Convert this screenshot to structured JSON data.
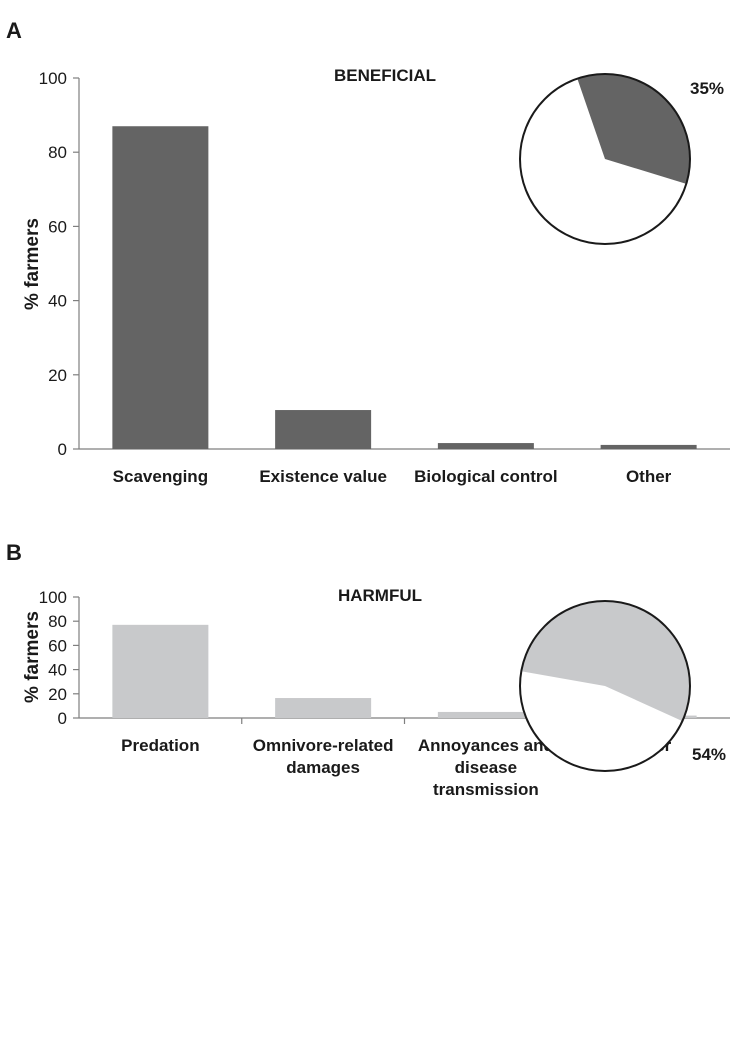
{
  "chart_data": [
    {
      "type": "bar",
      "panel": "A",
      "title": "BENEFICIAL",
      "ylabel": "% farmers",
      "xlabel": "",
      "ylim": [
        0,
        100
      ],
      "yticks": [
        0,
        20,
        40,
        60,
        80,
        100
      ],
      "categories": [
        "Scavenging",
        "Existence value",
        "Biological control",
        "Other"
      ],
      "category_lines": [
        [
          "Scavenging"
        ],
        [
          "Existence value"
        ],
        [
          "Biological control"
        ],
        [
          "Other"
        ]
      ],
      "values": [
        87,
        10.5,
        1.6,
        1.1
      ],
      "bar_color": "#646464",
      "inset_pie": {
        "label": "35%",
        "value": 35,
        "highlight_color": "#646464",
        "other_color": "#ffffff"
      }
    },
    {
      "type": "bar",
      "panel": "B",
      "title": "HARMFUL",
      "ylabel": "% farmers",
      "xlabel": "",
      "ylim": [
        0,
        100
      ],
      "yticks": [
        0,
        20,
        40,
        60,
        80,
        100
      ],
      "categories": [
        "Predation",
        "Omnivore-related damages",
        "Annoyances and disease transmission",
        "Other"
      ],
      "category_lines": [
        [
          "Predation"
        ],
        [
          "Omnivore-related",
          "damages"
        ],
        [
          "Annoyances and",
          "disease",
          "transmission"
        ],
        [
          "Other"
        ]
      ],
      "values": [
        77,
        16.5,
        5,
        2
      ],
      "bar_color": "#c8c9cb",
      "inset_pie": {
        "label": "54%",
        "value": 54,
        "highlight_color": "#c8c9cb",
        "other_color": "#ffffff"
      }
    }
  ]
}
